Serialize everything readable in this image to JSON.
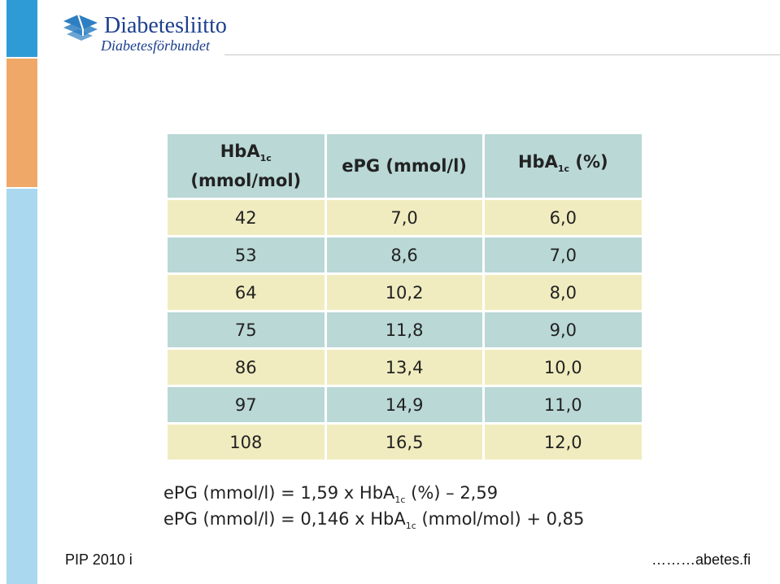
{
  "logo": {
    "name": "Diabetesliitto",
    "subname": "Diabetesförbundet",
    "mark_color": "#2e7fc1"
  },
  "table": {
    "headers": [
      {
        "main": "HbA",
        "sub": "1c",
        "suffix": "(mmol/mol)"
      },
      {
        "main": "ePG (mmol/l)",
        "sub": "",
        "suffix": ""
      },
      {
        "main": "HbA",
        "sub": "1c",
        "suffix": " (%)"
      }
    ],
    "rows": [
      [
        "42",
        "7,0",
        "6,0"
      ],
      [
        "53",
        "8,6",
        "7,0"
      ],
      [
        "64",
        "10,2",
        "8,0"
      ],
      [
        "75",
        "11,8",
        "9,0"
      ],
      [
        "86",
        "13,4",
        "10,0"
      ],
      [
        "97",
        "14,9",
        "11,0"
      ],
      [
        "108",
        "16,5",
        "12,0"
      ]
    ],
    "colors": {
      "header": "#b9d8d6",
      "row_light": "#f0ecbf",
      "row_teal": "#b9d8d6"
    }
  },
  "formulas": {
    "f1_prefix": "ePG (mmol/l) = 1,59 x HbA",
    "f1_sub": "1c",
    "f1_suffix": " (%) – 2,59",
    "f2_prefix": "ePG (mmol/l) = 0,146 x HbA",
    "f2_sub": "1c",
    "f2_suffix": " (mmol/mol) + 0,85"
  },
  "footer": {
    "left": "PIP 2010 i",
    "right": "………abetes.fi"
  },
  "stripe_colors": {
    "top": "#2e9bd6",
    "middle": "#f0a868",
    "bottom": "#a9d8ef"
  }
}
